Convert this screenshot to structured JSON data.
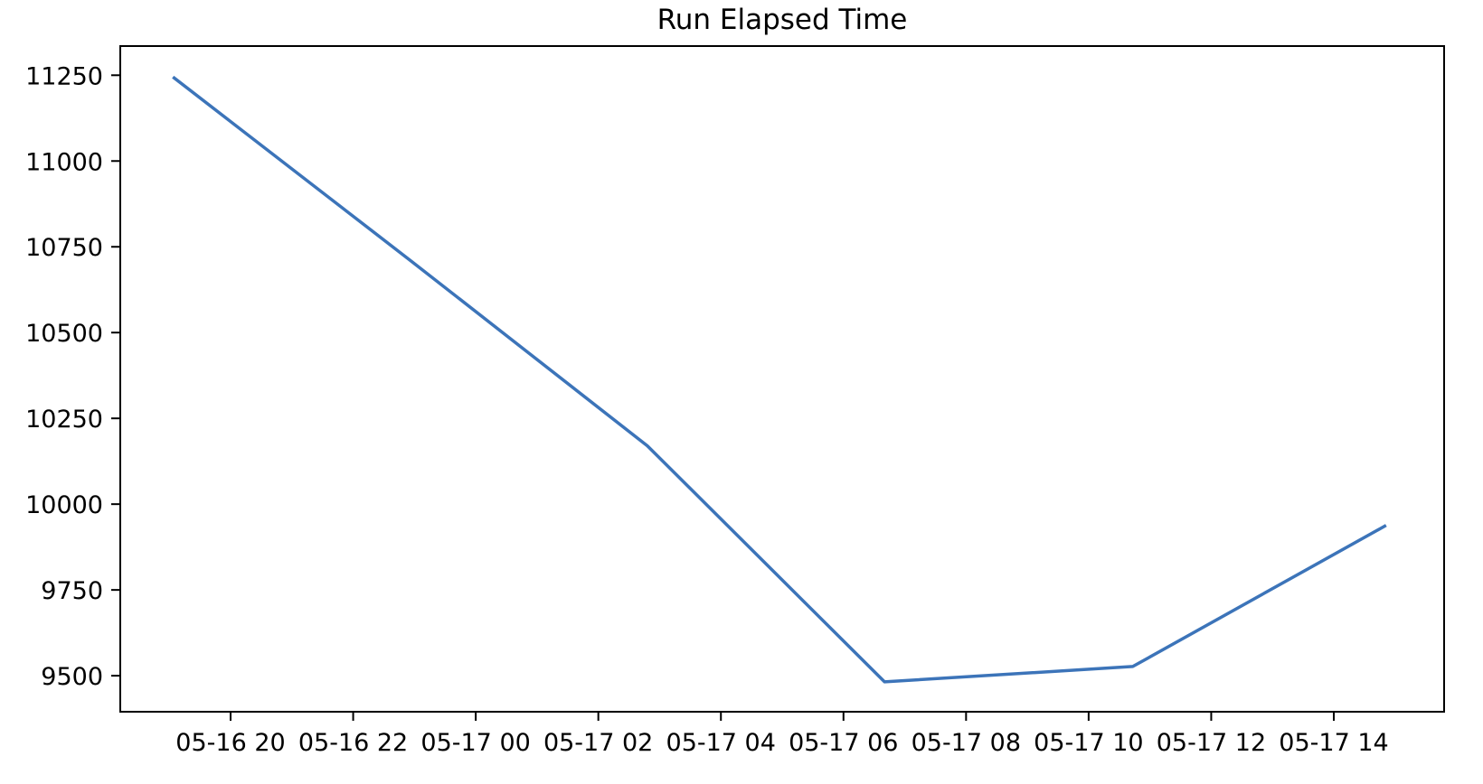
{
  "page": {
    "background": "#ffffff",
    "text_color": "#000000"
  },
  "chart_data": {
    "type": "line",
    "title": "Run Elapsed Time",
    "xlabel": "",
    "ylabel": "",
    "grid": false,
    "legend": "none",
    "x_tick_labels": [
      "05-16 20",
      "05-16 22",
      "05-17 00",
      "05-17 02",
      "05-17 04",
      "05-17 06",
      "05-17 08",
      "05-17 10",
      "05-17 12",
      "05-17 14"
    ],
    "x_tick_hours": [
      20,
      22,
      24,
      26,
      28,
      30,
      32,
      34,
      36,
      38
    ],
    "y_ticks": [
      9500,
      9750,
      10000,
      10250,
      10500,
      10750,
      11000,
      11250
    ],
    "xlim_hours": [
      18.2,
      39.8
    ],
    "ylim": [
      9395,
      11335
    ],
    "x_axis_unit_note": "x encoded as hours since 05-16 00:00",
    "series": [
      {
        "name": "run-elapsed-time",
        "color": "#3c74b9",
        "line_width": 3.5,
        "points": [
          {
            "time": "05-16 19:05",
            "hour": 19.08,
            "value": 11242
          },
          {
            "time": "05-16 22:57",
            "hour": 22.95,
            "value": 10708
          },
          {
            "time": "05-17 02:48",
            "hour": 26.8,
            "value": 10170
          },
          {
            "time": "05-17 06:40",
            "hour": 30.67,
            "value": 9482
          },
          {
            "time": "05-17 10:43",
            "hour": 34.72,
            "value": 9527
          },
          {
            "time": "05-17 14:50",
            "hour": 38.83,
            "value": 9936
          }
        ]
      }
    ],
    "axis_style": {
      "spine_color": "#000000",
      "spine_width": 2,
      "tick_length": 10,
      "tick_width": 2,
      "tick_label_size": 27,
      "title_size": 31
    }
  }
}
